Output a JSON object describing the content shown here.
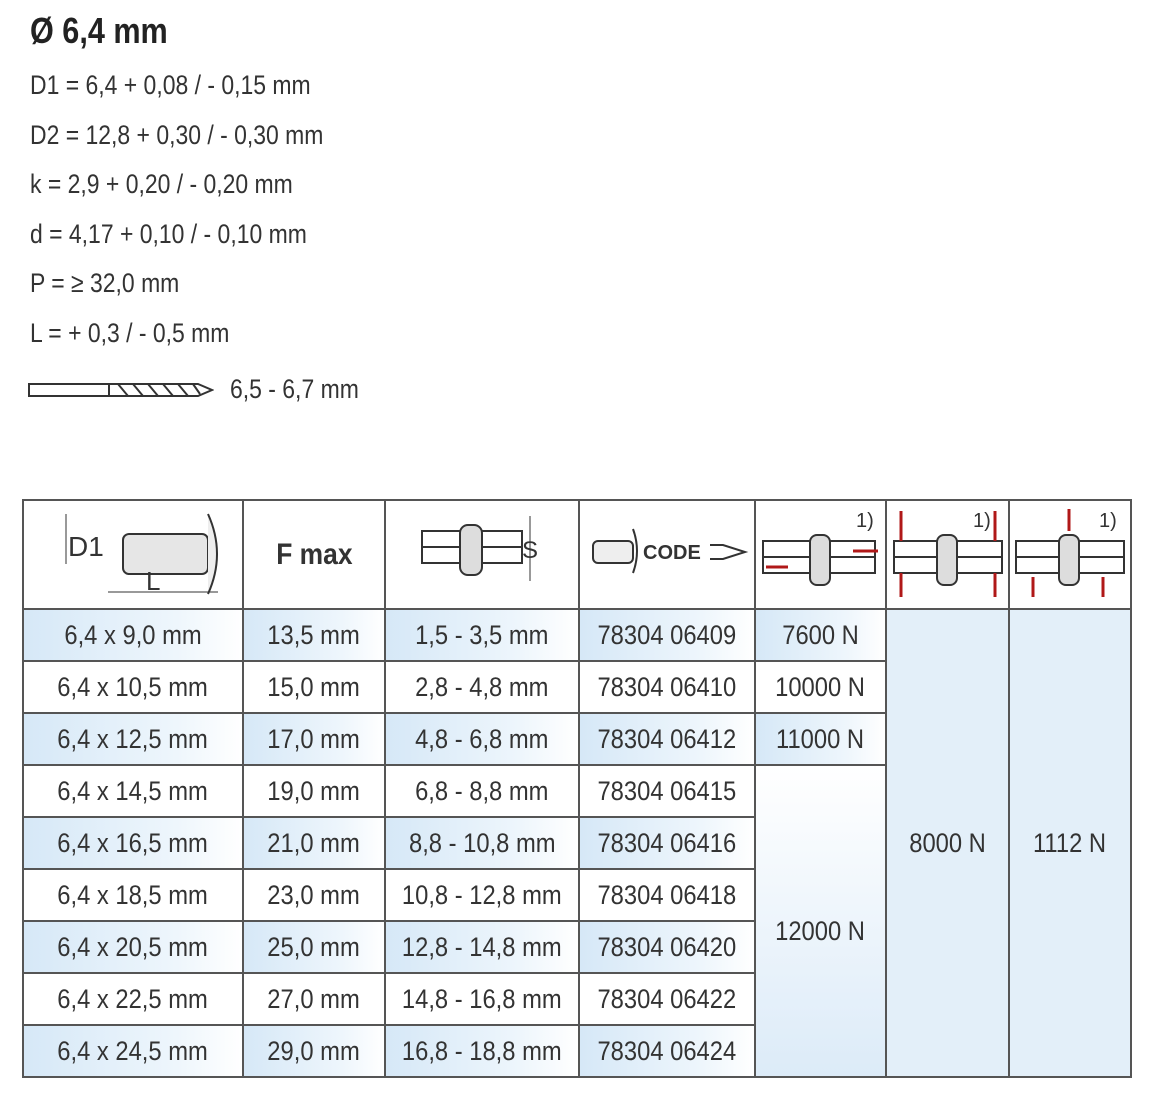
{
  "title": "Ø 6,4 mm",
  "specs": [
    "D1 = 6,4  + 0,08 / - 0,15 mm",
    "D2 = 12,8 + 0,30 / - 0,30 mm",
    "k = 2,9 + 0,20 / - 0,20 mm",
    "d = 4,17 + 0,10 / - 0,10 mm",
    "P = ≥ 32,0 mm",
    "L = + 0,3 / - 0,5 mm"
  ],
  "drill": {
    "icon": "drill-bit-icon",
    "value": "6,5 - 6,7 mm"
  },
  "table": {
    "headers": {
      "dim_icon": "rivet-dimension-icon",
      "d1": "D1",
      "l": "L",
      "fmax": "F max",
      "s": "S",
      "code": "CODE",
      "note": "1)"
    },
    "rows": [
      [
        "6,4 x 9,0 mm",
        "13,5 mm",
        "1,5 - 3,5 mm",
        "78304 06409"
      ],
      [
        "6,4 x 10,5 mm",
        "15,0 mm",
        "2,8 - 4,8 mm",
        "78304 06410"
      ],
      [
        "6,4 x 12,5 mm",
        "17,0 mm",
        "4,8 - 6,8 mm",
        "78304 06412"
      ],
      [
        "6,4 x 14,5 mm",
        "19,0 mm",
        "6,8 - 8,8 mm",
        "78304 06415"
      ],
      [
        "6,4 x 16,5 mm",
        "21,0 mm",
        "8,8 - 10,8 mm",
        "78304 06416"
      ],
      [
        "6,4 x 18,5 mm",
        "23,0 mm",
        "10,8 - 12,8 mm",
        "78304 06418"
      ],
      [
        "6,4 x 20,5 mm",
        "25,0 mm",
        "12,8 - 14,8 mm",
        "78304 06420"
      ],
      [
        "6,4 x 22,5 mm",
        "27,0 mm",
        "14,8 - 16,8 mm",
        "78304 06422"
      ],
      [
        "6,4 x 24,5 mm",
        "29,0 mm",
        "16,8 - 18,8 mm",
        "78304 06424"
      ]
    ],
    "shear": [
      "7600 N",
      "10000 N",
      "11000 N",
      "12000 N"
    ],
    "tensile": "8000 N",
    "head_retention": "1112 N"
  },
  "colors": {
    "arrow": "#b01818",
    "row_tint": "#d6e8f7"
  }
}
